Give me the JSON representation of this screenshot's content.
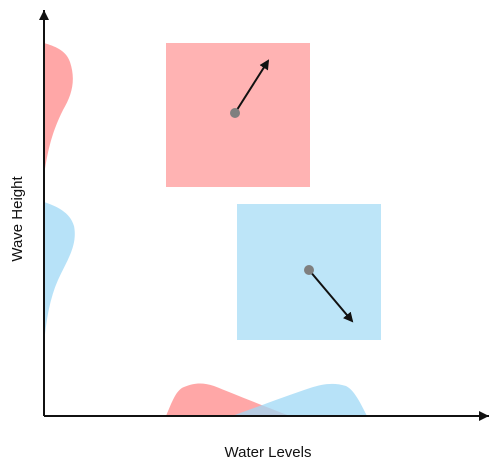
{
  "diagram": {
    "x_axis_label": "Water Levels",
    "y_axis_label": "Wave Height",
    "groups": [
      {
        "id": "red",
        "color": "#ff8a8a",
        "box_fill": "#ffb3b3",
        "point_color": "#7f7f7f",
        "arrow_direction": "up-right"
      },
      {
        "id": "blue",
        "color": "#9fd8f5",
        "box_fill": "#bde5f8",
        "point_color": "#7f7f7f",
        "arrow_direction": "down-right"
      }
    ]
  }
}
